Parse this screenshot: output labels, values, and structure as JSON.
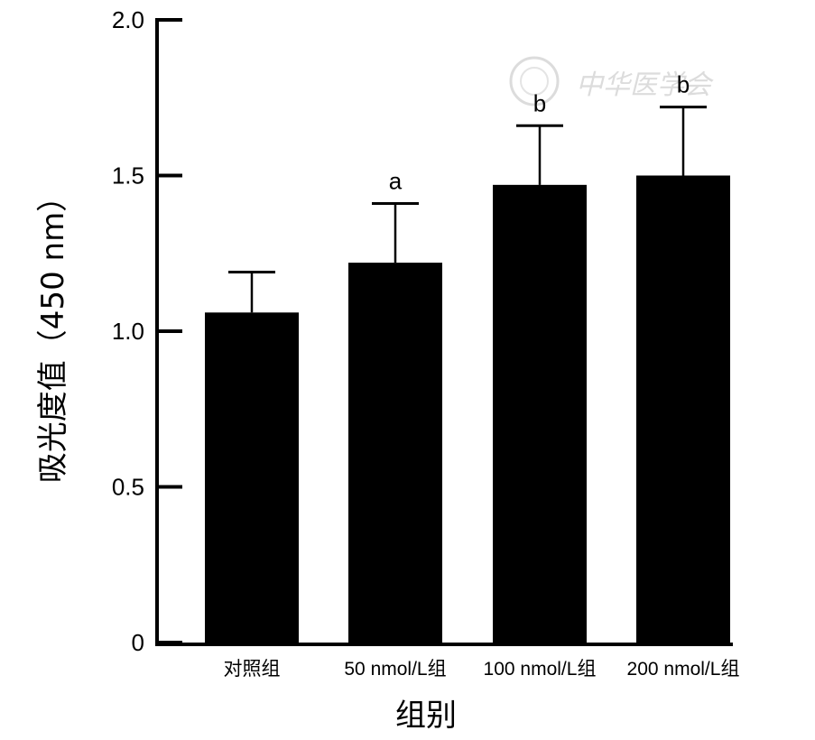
{
  "chart_data": {
    "type": "bar",
    "title": "",
    "xlabel": "组别",
    "ylabel": "吸光度值（450 nm）",
    "ylim": [
      0,
      2.0
    ],
    "yticks": [
      {
        "value": 0,
        "label": "0"
      },
      {
        "value": 0.5,
        "label": "0.5"
      },
      {
        "value": 1.0,
        "label": "1.0"
      },
      {
        "value": 1.5,
        "label": "1.5"
      },
      {
        "value": 2.0,
        "label": "2.0"
      }
    ],
    "categories": [
      "对照组",
      "50 nmol/L组",
      "100 nmol/L组",
      "200 nmol/L组"
    ],
    "values": [
      1.06,
      1.22,
      1.47,
      1.5
    ],
    "errors": [
      0.13,
      0.19,
      0.19,
      0.22
    ],
    "significance": [
      "",
      "a",
      "b",
      "b"
    ],
    "bar_color": "#000000",
    "grid": false,
    "legend": "none"
  },
  "watermark": {
    "text": "中华医学会",
    "color": "#dcdcdc"
  }
}
